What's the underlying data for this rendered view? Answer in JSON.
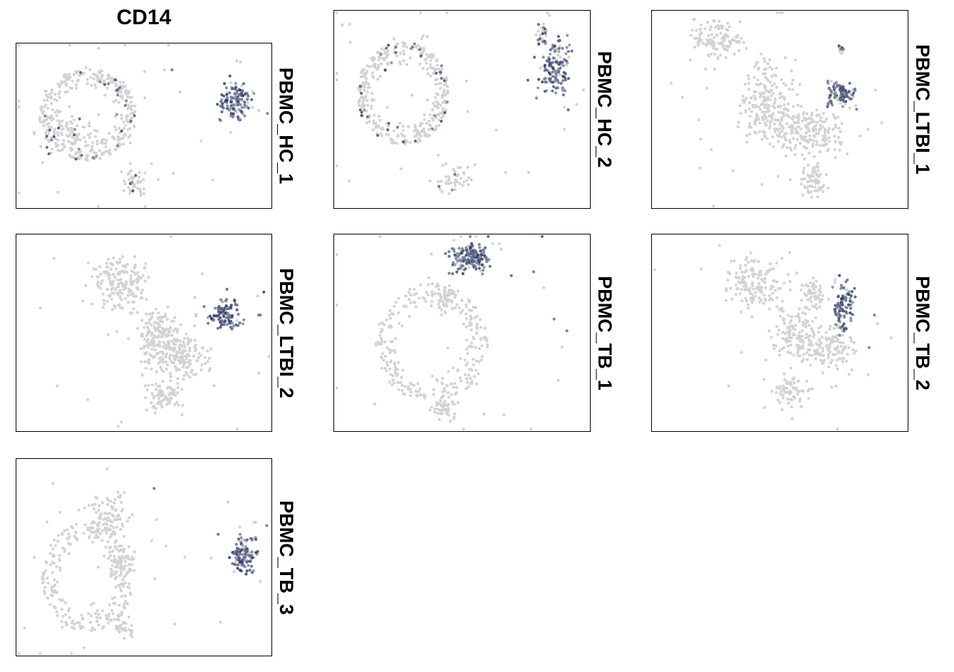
{
  "figure": {
    "title": "CD14"
  },
  "colors": {
    "low": "#d3d3d3",
    "high": "#1b2a5c",
    "mid": "#7a82a3"
  },
  "chart_data": {
    "type": "scatter",
    "title": "CD14",
    "description_of_encoding": "",
    "panels": [
      {
        "label": "PBMC_HC_1",
        "clusters": [
          {
            "cx": 0.28,
            "cy": 0.43,
            "rx": 0.19,
            "ry": 0.28,
            "n": 330,
            "ring": true,
            "expr": 0.1
          },
          {
            "cx": 0.22,
            "cy": 0.55,
            "rx": 0.1,
            "ry": 0.13,
            "n": 70,
            "expr": 0.05
          },
          {
            "cx": 0.46,
            "cy": 0.85,
            "rx": 0.05,
            "ry": 0.08,
            "n": 40,
            "expr": 0.05
          },
          {
            "cx": 0.86,
            "cy": 0.35,
            "rx": 0.06,
            "ry": 0.12,
            "n": 120,
            "expr": 0.85
          }
        ],
        "outliers": [
          [
            0.58,
            0.16,
            0
          ],
          [
            0.61,
            0.16,
            1
          ],
          [
            0.77,
            0.83,
            0
          ],
          [
            0.84,
            0.54,
            0
          ],
          [
            0.53,
            0.73,
            0
          ],
          [
            0.07,
            0.55,
            0
          ]
        ]
      },
      {
        "label": "PBMC_HC_2",
        "clusters": [
          {
            "cx": 0.27,
            "cy": 0.42,
            "rx": 0.18,
            "ry": 0.26,
            "n": 350,
            "ring": true,
            "expr": 0.1
          },
          {
            "cx": 0.47,
            "cy": 0.85,
            "rx": 0.06,
            "ry": 0.07,
            "n": 40,
            "expr": 0.05
          },
          {
            "cx": 0.86,
            "cy": 0.28,
            "rx": 0.06,
            "ry": 0.15,
            "n": 130,
            "expr": 0.75
          },
          {
            "cx": 0.82,
            "cy": 0.12,
            "rx": 0.03,
            "ry": 0.05,
            "n": 25,
            "expr": 0.25
          }
        ],
        "outliers": [
          [
            0.67,
            0.82,
            0
          ],
          [
            0.76,
            0.82,
            0
          ],
          [
            0.9,
            0.6,
            0
          ],
          [
            0.55,
            0.78,
            0
          ]
        ]
      },
      {
        "label": "PBMC_LTBI_1",
        "clusters": [
          {
            "cx": 0.26,
            "cy": 0.15,
            "rx": 0.1,
            "ry": 0.09,
            "n": 110,
            "expr": 0.0
          },
          {
            "cx": 0.45,
            "cy": 0.47,
            "rx": 0.12,
            "ry": 0.2,
            "n": 220,
            "expr": 0.0
          },
          {
            "cx": 0.62,
            "cy": 0.62,
            "rx": 0.13,
            "ry": 0.12,
            "n": 170,
            "expr": 0.0
          },
          {
            "cx": 0.63,
            "cy": 0.85,
            "rx": 0.05,
            "ry": 0.08,
            "n": 60,
            "expr": 0.0
          },
          {
            "cx": 0.74,
            "cy": 0.42,
            "rx": 0.06,
            "ry": 0.07,
            "n": 90,
            "expr": 0.8
          },
          {
            "cx": 0.74,
            "cy": 0.21,
            "rx": 0.01,
            "ry": 0.03,
            "n": 8,
            "expr": 0.2
          }
        ],
        "outliers": [
          [
            0.43,
            0.88,
            0
          ],
          [
            0.15,
            0.25,
            0
          ],
          [
            0.5,
            0.62,
            0
          ]
        ]
      },
      {
        "label": "PBMC_LTBI_2",
        "clusters": [
          {
            "cx": 0.4,
            "cy": 0.25,
            "rx": 0.12,
            "ry": 0.13,
            "n": 160,
            "expr": 0.0
          },
          {
            "cx": 0.63,
            "cy": 0.61,
            "rx": 0.13,
            "ry": 0.12,
            "n": 200,
            "expr": 0.0
          },
          {
            "cx": 0.55,
            "cy": 0.48,
            "rx": 0.08,
            "ry": 0.1,
            "n": 90,
            "expr": 0.0
          },
          {
            "cx": 0.57,
            "cy": 0.83,
            "rx": 0.07,
            "ry": 0.07,
            "n": 70,
            "expr": 0.0
          },
          {
            "cx": 0.82,
            "cy": 0.41,
            "rx": 0.06,
            "ry": 0.07,
            "n": 100,
            "expr": 0.8
          }
        ],
        "outliers": [
          [
            0.16,
            0.77,
            0
          ],
          [
            0.28,
            0.84,
            0
          ],
          [
            0.36,
            0.51,
            0
          ],
          [
            0.95,
            0.41,
            1
          ],
          [
            0.73,
            0.2,
            0
          ]
        ]
      },
      {
        "label": "PBMC_TB_1",
        "clusters": [
          {
            "cx": 0.53,
            "cy": 0.12,
            "rx": 0.08,
            "ry": 0.07,
            "n": 180,
            "expr": 0.9
          },
          {
            "cx": 0.38,
            "cy": 0.55,
            "rx": 0.22,
            "ry": 0.3,
            "n": 260,
            "ring": true,
            "expr": 0.0
          },
          {
            "cx": 0.43,
            "cy": 0.88,
            "rx": 0.05,
            "ry": 0.07,
            "n": 40,
            "expr": 0.0
          },
          {
            "cx": 0.43,
            "cy": 0.33,
            "rx": 0.05,
            "ry": 0.06,
            "n": 40,
            "expr": 0.0
          }
        ],
        "outliers": [
          [
            0.78,
            0.19,
            1
          ],
          [
            0.82,
            0.27,
            0
          ],
          [
            0.86,
            0.43,
            1
          ],
          [
            0.91,
            0.49,
            1
          ],
          [
            0.38,
            0.1,
            0
          ],
          [
            0.37,
            0.22,
            0
          ]
        ]
      },
      {
        "label": "PBMC_TB_2",
        "clusters": [
          {
            "cx": 0.4,
            "cy": 0.25,
            "rx": 0.12,
            "ry": 0.14,
            "n": 140,
            "expr": 0.0
          },
          {
            "cx": 0.55,
            "cy": 0.5,
            "rx": 0.1,
            "ry": 0.12,
            "n": 110,
            "expr": 0.0
          },
          {
            "cx": 0.68,
            "cy": 0.58,
            "rx": 0.1,
            "ry": 0.1,
            "n": 120,
            "expr": 0.0
          },
          {
            "cx": 0.55,
            "cy": 0.8,
            "rx": 0.07,
            "ry": 0.08,
            "n": 60,
            "expr": 0.0
          },
          {
            "cx": 0.63,
            "cy": 0.31,
            "rx": 0.04,
            "ry": 0.08,
            "n": 60,
            "expr": 0.0
          },
          {
            "cx": 0.75,
            "cy": 0.37,
            "rx": 0.04,
            "ry": 0.12,
            "n": 90,
            "expr": 0.75
          }
        ],
        "outliers": [
          [
            0.35,
            0.6,
            0
          ],
          [
            0.3,
            0.77,
            0
          ],
          [
            0.44,
            0.88,
            0
          ],
          [
            0.87,
            0.41,
            1
          ]
        ]
      },
      {
        "label": "PBMC_TB_3",
        "clusters": [
          {
            "cx": 0.36,
            "cy": 0.3,
            "rx": 0.08,
            "ry": 0.12,
            "n": 90,
            "expr": 0.0
          },
          {
            "cx": 0.28,
            "cy": 0.6,
            "rx": 0.18,
            "ry": 0.28,
            "n": 230,
            "ring": true,
            "expr": 0.0
          },
          {
            "cx": 0.4,
            "cy": 0.52,
            "rx": 0.06,
            "ry": 0.08,
            "n": 50,
            "expr": 0.0
          },
          {
            "cx": 0.42,
            "cy": 0.85,
            "rx": 0.04,
            "ry": 0.06,
            "n": 30,
            "expr": 0.0
          },
          {
            "cx": 0.89,
            "cy": 0.49,
            "rx": 0.05,
            "ry": 0.09,
            "n": 110,
            "expr": 0.85
          }
        ],
        "outliers": [
          [
            0.54,
            0.15,
            1
          ],
          [
            0.83,
            0.22,
            0
          ],
          [
            0.12,
            0.32,
            0
          ],
          [
            0.07,
            0.5,
            0
          ],
          [
            0.66,
            0.5,
            0
          ],
          [
            0.8,
            0.83,
            0
          ],
          [
            0.62,
            0.84,
            0
          ]
        ]
      }
    ]
  }
}
